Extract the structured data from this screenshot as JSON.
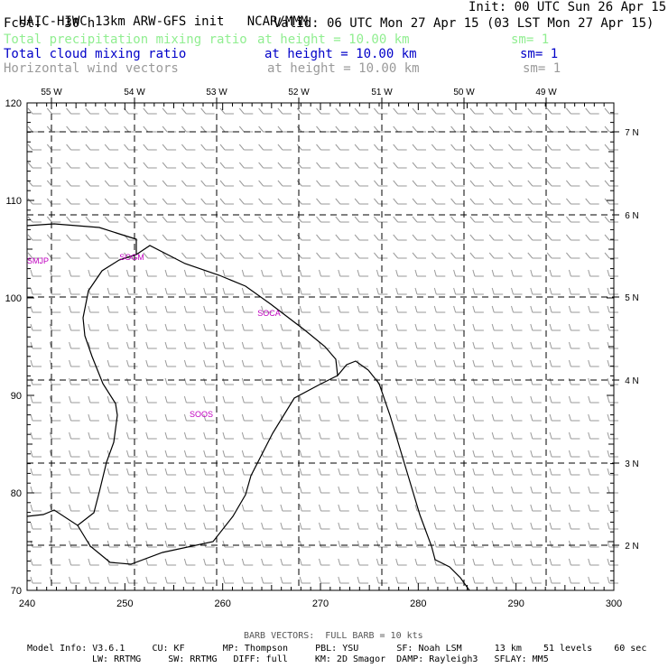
{
  "header": {
    "title": "HAIC-HIWC 13km ARW-GFS init",
    "org": "NCAR/MMM",
    "init": "Init: 00 UTC Sun 26 Apr 15",
    "fcst": "Fcst:   30 h",
    "valid": "Valid: 06 UTC Mon 27 Apr 15 (03 LST Mon 27 Apr 15)",
    "fields": [
      {
        "name": "Total precipitation mixing ratio",
        "height": "at height = 10.00 km",
        "sm": "sm= 1",
        "color": "#90ee90"
      },
      {
        "name": "Total cloud mixing ratio",
        "height": "at height = 10.00 km",
        "sm": "sm= 1",
        "color": "#0000c8"
      },
      {
        "name": "Horizontal wind vectors",
        "height": "at height = 10.00 km",
        "sm": "sm= 1",
        "color": "#9a9a9a"
      }
    ]
  },
  "map": {
    "x_ticks": [
      "240",
      "250",
      "260",
      "270",
      "280",
      "290",
      "300"
    ],
    "y_ticks": [
      "70",
      "80",
      "90",
      "100",
      "110",
      "120"
    ],
    "lon_labels": [
      "55 W",
      "54 W",
      "53 W",
      "52 W",
      "51 W",
      "50 W",
      "49 W"
    ],
    "lat_labels": [
      "7 N",
      "6 N",
      "5 N",
      "4 N",
      "3 N",
      "2 N"
    ],
    "stations": [
      "SMJP",
      "SOGM",
      "SOCA",
      "SOOS"
    ],
    "station_color": "#c000c0",
    "barb_color": "#9a9a9a"
  },
  "footer": {
    "barb_note": "BARB VECTORS:  FULL BARB = 10 kts",
    "line1": "Model Info: V3.6.1     CU: KF       MP: Thompson     PBL: YSU       SF: Noah LSM      13 km    51 levels    60 sec",
    "line2": "LW: RRTMG     SW: RRTMG   DIFF: full     KM: 2D Smagor  DAMP: Rayleigh3   SFLAY: MM5"
  }
}
